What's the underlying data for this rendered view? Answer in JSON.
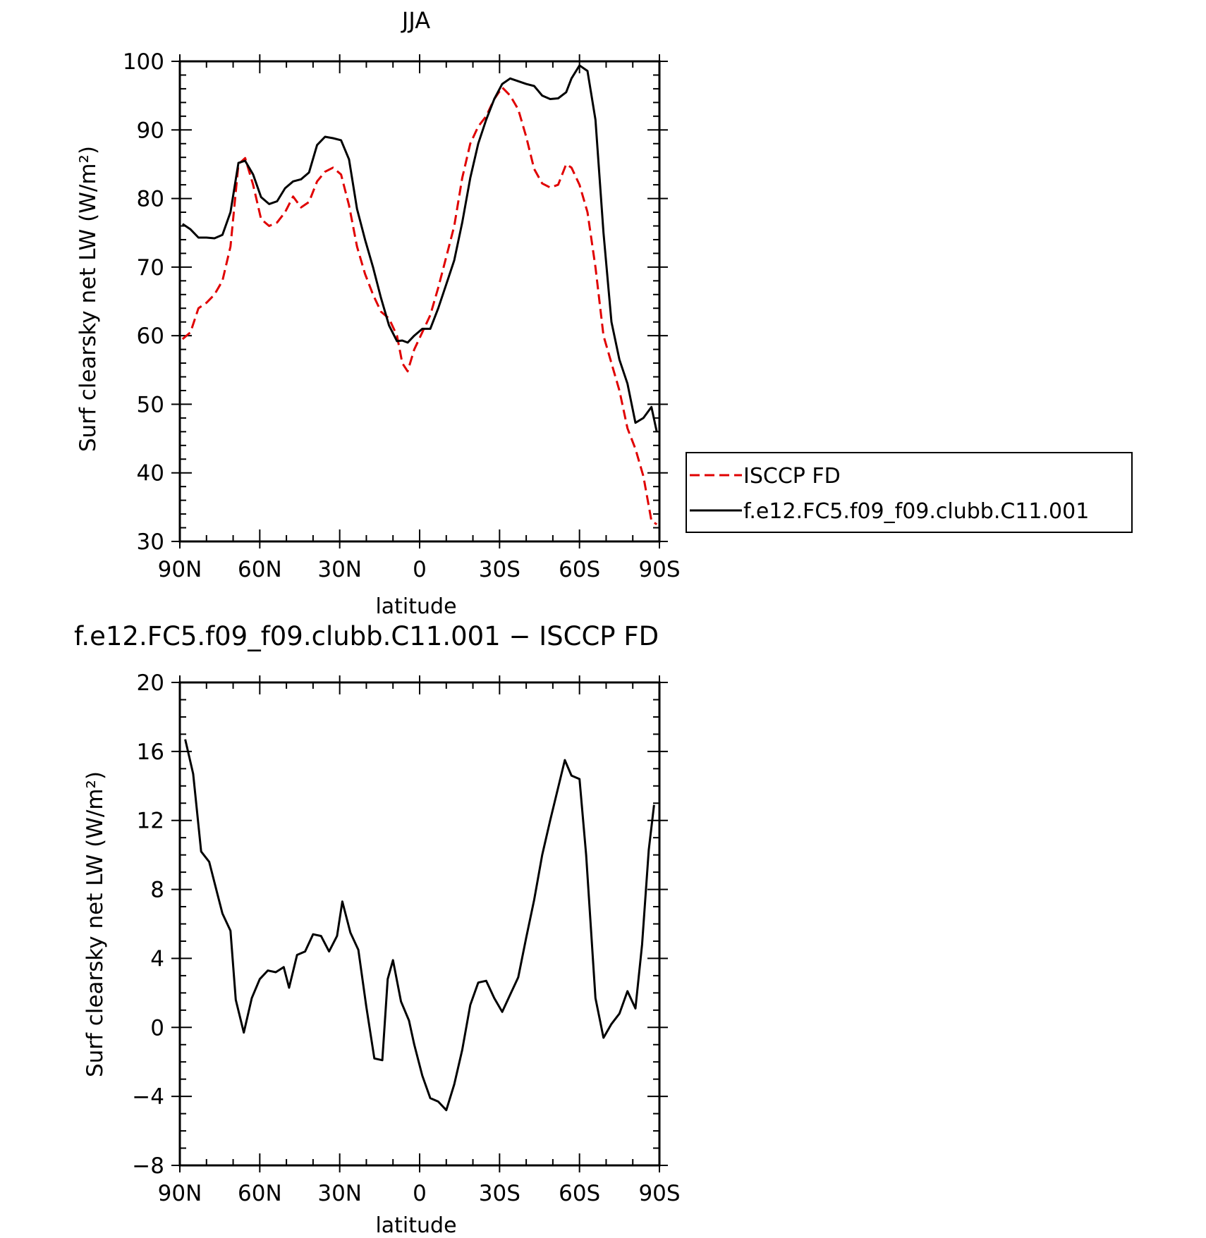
{
  "chart_data": [
    {
      "type": "line",
      "title": "JJA",
      "xlabel": "latitude",
      "ylabel": "Surf clearsky net LW (W/m²)",
      "xlim": [
        -90,
        90
      ],
      "ylim": [
        30,
        100
      ],
      "xticks": [
        {
          "value": -90,
          "label": "90N"
        },
        {
          "value": -60,
          "label": "60N"
        },
        {
          "value": -30,
          "label": "30N"
        },
        {
          "value": 0,
          "label": "0"
        },
        {
          "value": 30,
          "label": "30S"
        },
        {
          "value": 60,
          "label": "60S"
        },
        {
          "value": 90,
          "label": "90S"
        }
      ],
      "yticks": [
        {
          "value": 100,
          "label": "100"
        },
        {
          "value": 90,
          "label": "90"
        },
        {
          "value": 80,
          "label": "80"
        },
        {
          "value": 70,
          "label": "70"
        },
        {
          "value": 60,
          "label": "60"
        },
        {
          "value": 50,
          "label": "50"
        },
        {
          "value": 40,
          "label": "40"
        },
        {
          "value": 30,
          "label": "30"
        }
      ],
      "legend": {
        "placement": "right"
      },
      "series": [
        {
          "name": "ISCCP FD",
          "color": "#e00000",
          "style": "dashed",
          "x": [
            -89,
            -86,
            -83,
            -80,
            -77,
            -74,
            -71,
            -68,
            -65.5,
            -62.5,
            -59.5,
            -56.5,
            -53.5,
            -50.5,
            -47.5,
            -44.5,
            -41.5,
            -38.5,
            -35.5,
            -32.5,
            -29.5,
            -26.5,
            -23.5,
            -20.5,
            -17.5,
            -14.5,
            -11.5,
            -8.5,
            -6.5,
            -4.5,
            -2,
            1,
            4,
            7,
            10,
            13,
            16,
            19,
            22,
            25,
            28,
            31,
            34,
            37,
            40,
            43,
            46,
            49,
            52,
            55,
            57,
            60,
            63,
            66,
            69,
            72,
            75,
            78,
            81,
            84,
            87,
            89
          ],
          "y": [
            59.5,
            60.5,
            64,
            64.8,
            66,
            68,
            73,
            85,
            85.9,
            82,
            77,
            76,
            76.5,
            78,
            80.3,
            78.7,
            79.5,
            82.5,
            83.9,
            84.5,
            83.5,
            79,
            73,
            69,
            66,
            63.5,
            62.5,
            60,
            56,
            54.8,
            58,
            60.5,
            63,
            67,
            71.5,
            76,
            83,
            88,
            90.5,
            92,
            94.5,
            96.2,
            95,
            93,
            89,
            84.3,
            82.2,
            81.6,
            82,
            85,
            84.5,
            82,
            78,
            70,
            60,
            56,
            52,
            46.5,
            43.5,
            39.5,
            33,
            32.5
          ]
        },
        {
          "name": "f.e12.FC5.f09_f09.clubb.C11.001",
          "color": "#000000",
          "style": "solid",
          "x": [
            -89,
            -86,
            -83,
            -80,
            -77,
            -74,
            -71,
            -68,
            -65.5,
            -62.5,
            -59.5,
            -56.5,
            -53.5,
            -50.5,
            -47.5,
            -44.5,
            -41.5,
            -38.5,
            -35.5,
            -32.5,
            -29.5,
            -26.5,
            -23.5,
            -20.5,
            -17.5,
            -14.5,
            -11.5,
            -8.5,
            -6.5,
            -4.5,
            -2,
            1,
            4,
            7,
            10,
            13,
            16,
            19,
            22,
            25,
            28,
            31,
            34,
            37,
            40,
            43,
            46,
            49,
            52,
            55,
            57,
            60,
            63,
            66,
            69,
            72,
            75,
            78,
            81,
            84,
            87,
            89
          ],
          "y": [
            76.3,
            75.5,
            74.3,
            74.3,
            74.2,
            74.7,
            78,
            85.2,
            85.5,
            83.5,
            80.2,
            79.2,
            79.6,
            81.5,
            82.5,
            82.8,
            83.8,
            87.8,
            89,
            88.8,
            88.5,
            85.7,
            78.5,
            74,
            70,
            65.5,
            61.5,
            59.2,
            59.3,
            59,
            60,
            61,
            61,
            64,
            67.5,
            71,
            76.5,
            83,
            88,
            91.5,
            94.5,
            96.7,
            97.5,
            97.1,
            96.7,
            96.4,
            95,
            94.5,
            94.6,
            95.5,
            97.5,
            99.4,
            98.6,
            91.5,
            75,
            62,
            56.5,
            53,
            47.3,
            48,
            49.6,
            46
          ]
        }
      ]
    },
    {
      "type": "line",
      "title": "f.e12.FC5.f09_f09.clubb.C11.001 − ISCCP FD",
      "xlabel": "latitude",
      "ylabel": "Surf clearsky net LW (W/m²)",
      "xlim": [
        -90,
        90
      ],
      "ylim": [
        -8,
        20
      ],
      "xticks": [
        {
          "value": -90,
          "label": "90N"
        },
        {
          "value": -60,
          "label": "60N"
        },
        {
          "value": -30,
          "label": "30N"
        },
        {
          "value": 0,
          "label": "0"
        },
        {
          "value": 30,
          "label": "30S"
        },
        {
          "value": 60,
          "label": "60S"
        },
        {
          "value": 90,
          "label": "90S"
        }
      ],
      "yticks": [
        {
          "value": 20,
          "label": "20"
        },
        {
          "value": 16,
          "label": "16"
        },
        {
          "value": 12,
          "label": "12"
        },
        {
          "value": 8,
          "label": "8"
        },
        {
          "value": 4,
          "label": "4"
        },
        {
          "value": 0,
          "label": "0"
        },
        {
          "value": -4,
          "label": "−4"
        },
        {
          "value": -8,
          "label": "−8"
        }
      ],
      "series": [
        {
          "color": "#000000",
          "style": "solid",
          "x": [
            -88,
            -85,
            -82,
            -79,
            -77,
            -74,
            -71,
            -69,
            -66,
            -63,
            -60,
            -57,
            -54,
            -51,
            -49,
            -46,
            -43,
            -40,
            -37,
            -34,
            -31,
            -29,
            -26,
            -23,
            -20,
            -17,
            -14,
            -12,
            -10,
            -7,
            -4,
            -2,
            1,
            4,
            7,
            10,
            13,
            16,
            19,
            22,
            25,
            28,
            31,
            34,
            37,
            40,
            43,
            46,
            49,
            52,
            54.5,
            57,
            60,
            62.5,
            66,
            69,
            72,
            75,
            78,
            81,
            83.5,
            86,
            88
          ],
          "y": [
            16.7,
            14.7,
            10.2,
            9.6,
            8.4,
            6.6,
            5.6,
            1.6,
            -0.3,
            1.7,
            2.8,
            3.3,
            3.2,
            3.5,
            2.3,
            4.2,
            4.4,
            5.4,
            5.3,
            4.4,
            5.3,
            7.3,
            5.5,
            4.5,
            1.2,
            -1.8,
            -1.9,
            2.8,
            3.9,
            1.5,
            0.4,
            -1,
            -2.8,
            -4.1,
            -4.3,
            -4.8,
            -3.3,
            -1.3,
            1.3,
            2.6,
            2.7,
            1.7,
            0.9,
            1.9,
            2.9,
            5.2,
            7.4,
            10,
            12,
            13.9,
            15.5,
            14.6,
            14.4,
            10,
            1.7,
            -0.6,
            0.2,
            0.8,
            2.1,
            1.1,
            4.8,
            10.3,
            12.9
          ]
        }
      ]
    }
  ]
}
